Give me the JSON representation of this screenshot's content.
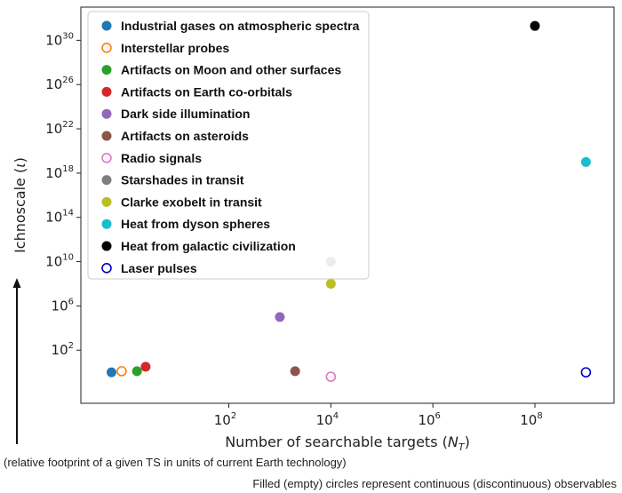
{
  "chart_data": {
    "type": "scatter",
    "xlabel": "Number of searchable targets (N_T)",
    "ylabel": "Ichnoscale (ι)",
    "xscale": "log",
    "yscale": "log",
    "xlim_log10": [
      -0.9,
      9.55
    ],
    "ylim_log10": [
      -2.8,
      33.0
    ],
    "xticks": [
      {
        "base": "10",
        "exp": "2",
        "log10": 2
      },
      {
        "base": "10",
        "exp": "4",
        "log10": 4
      },
      {
        "base": "10",
        "exp": "6",
        "log10": 6
      },
      {
        "base": "10",
        "exp": "8",
        "log10": 8
      }
    ],
    "yticks": [
      {
        "base": "10",
        "exp": "2",
        "log10": 2
      },
      {
        "base": "10",
        "exp": "6",
        "log10": 6
      },
      {
        "base": "10",
        "exp": "10",
        "log10": 10
      },
      {
        "base": "10",
        "exp": "14",
        "log10": 14
      },
      {
        "base": "10",
        "exp": "18",
        "log10": 18
      },
      {
        "base": "10",
        "exp": "22",
        "log10": 22
      },
      {
        "base": "10",
        "exp": "26",
        "log10": 26
      },
      {
        "base": "10",
        "exp": "30",
        "log10": 30
      }
    ],
    "legend_position": "upper-left",
    "grid": false,
    "series": [
      {
        "name": "Industrial gases on atmospheric spectra",
        "color": "#1f77b4",
        "filled": true,
        "x_log10": -0.3,
        "y_log10": 0.0
      },
      {
        "name": "Interstellar probes",
        "color": "#ff7f0e",
        "filled": false,
        "x_log10": -0.1,
        "y_log10": 0.1
      },
      {
        "name": "Artifacts on Moon and other surfaces",
        "color": "#2ca02c",
        "filled": true,
        "x_log10": 0.2,
        "y_log10": 0.1
      },
      {
        "name": "Artifacts on Earth co-orbitals",
        "color": "#d62728",
        "filled": true,
        "x_log10": 0.37,
        "y_log10": 0.5
      },
      {
        "name": "Dark side illumination",
        "color": "#9467bd",
        "filled": true,
        "x_log10": 3.0,
        "y_log10": 5.0
      },
      {
        "name": "Artifacts on asteroids",
        "color": "#8c564b",
        "filled": true,
        "x_log10": 3.3,
        "y_log10": 0.1
      },
      {
        "name": "Radio signals",
        "color": "#e377c2",
        "filled": false,
        "x_log10": 4.0,
        "y_log10": -0.4
      },
      {
        "name": "Starshades in transit",
        "color": "#7f7f7f",
        "filled": true,
        "x_log10": 4.0,
        "y_log10": 10.0
      },
      {
        "name": "Clarke exobelt in transit",
        "color": "#bcbd22",
        "filled": true,
        "x_log10": 4.0,
        "y_log10": 8.0
      },
      {
        "name": "Heat from dyson spheres",
        "color": "#17becf",
        "filled": true,
        "x_log10": 9.0,
        "y_log10": 19.0
      },
      {
        "name": "Heat from galactic civilization",
        "color": "#000000",
        "filled": true,
        "x_log10": 8.0,
        "y_log10": 31.3
      },
      {
        "name": "Laser pulses",
        "color": "#0000cc",
        "filled": false,
        "x_log10": 9.0,
        "y_log10": 0.0
      }
    ]
  },
  "annotations": {
    "footprint_note": "(relative footprint of a given TS in units of current Earth technology)",
    "filled_note": "Filled (empty) circles represent continuous (discontinuous) observables"
  }
}
